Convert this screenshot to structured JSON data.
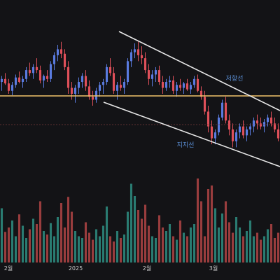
{
  "chart_data": {
    "type": "candlestick",
    "x_tick_labels": [
      "2월",
      "2025",
      "2월",
      "3월"
    ],
    "annotations": [
      "저항선",
      "지지선"
    ],
    "colors": {
      "background": "#131316",
      "up": "#5a7be0",
      "down": "#e0505a",
      "volume_up": "#2f8f82",
      "volume_down": "#b34545",
      "trendline": "#e8e8e8",
      "horizontal_level": "#f2c36b",
      "annotation": "#5b8fd6"
    },
    "price": {
      "ylim": [
        0,
        100
      ],
      "ohlc": [
        [
          58,
          62,
          52,
          60
        ],
        [
          60,
          64,
          56,
          57
        ],
        [
          57,
          60,
          50,
          52
        ],
        [
          52,
          58,
          49,
          56
        ],
        [
          56,
          63,
          54,
          61
        ],
        [
          61,
          65,
          57,
          58
        ],
        [
          58,
          62,
          54,
          60
        ],
        [
          60,
          68,
          58,
          66
        ],
        [
          66,
          71,
          62,
          64
        ],
        [
          64,
          70,
          60,
          68
        ],
        [
          68,
          74,
          64,
          66
        ],
        [
          66,
          69,
          57,
          59
        ],
        [
          59,
          63,
          54,
          62
        ],
        [
          62,
          66,
          58,
          60
        ],
        [
          60,
          72,
          58,
          70
        ],
        [
          70,
          78,
          66,
          76
        ],
        [
          76,
          83,
          72,
          80
        ],
        [
          80,
          85,
          74,
          77
        ],
        [
          77,
          80,
          66,
          68
        ],
        [
          68,
          72,
          50,
          54
        ],
        [
          54,
          58,
          46,
          50
        ],
        [
          50,
          56,
          44,
          54
        ],
        [
          54,
          61,
          50,
          58
        ],
        [
          58,
          64,
          54,
          62
        ],
        [
          62,
          66,
          52,
          55
        ],
        [
          55,
          59,
          46,
          48
        ],
        [
          48,
          52,
          42,
          46
        ],
        [
          46,
          54,
          44,
          52
        ],
        [
          52,
          58,
          48,
          56
        ],
        [
          56,
          60,
          50,
          58
        ],
        [
          58,
          70,
          56,
          68
        ],
        [
          68,
          74,
          62,
          64
        ],
        [
          64,
          68,
          50,
          52
        ],
        [
          52,
          58,
          46,
          56
        ],
        [
          56,
          62,
          52,
          54
        ],
        [
          54,
          60,
          50,
          58
        ],
        [
          58,
          74,
          56,
          72
        ],
        [
          72,
          80,
          68,
          78
        ],
        [
          78,
          84,
          74,
          80
        ],
        [
          80,
          85,
          72,
          76
        ],
        [
          76,
          82,
          70,
          74
        ],
        [
          74,
          78,
          64,
          66
        ],
        [
          66,
          70,
          56,
          60
        ],
        [
          60,
          66,
          55,
          63
        ],
        [
          63,
          68,
          58,
          66
        ],
        [
          66,
          69,
          56,
          58
        ],
        [
          58,
          62,
          50,
          54
        ],
        [
          54,
          60,
          52,
          58
        ],
        [
          58,
          62,
          54,
          59
        ],
        [
          59,
          62,
          50,
          52
        ],
        [
          52,
          58,
          48,
          56
        ],
        [
          56,
          60,
          52,
          54
        ],
        [
          54,
          58,
          50,
          57
        ],
        [
          57,
          60,
          52,
          53
        ],
        [
          53,
          58,
          50,
          56
        ],
        [
          56,
          62,
          54,
          60
        ],
        [
          60,
          63,
          51,
          52
        ],
        [
          52,
          55,
          46,
          48
        ],
        [
          48,
          52,
          36,
          38
        ],
        [
          38,
          42,
          24,
          28
        ],
        [
          28,
          32,
          16,
          20
        ],
        [
          20,
          26,
          16,
          24
        ],
        [
          24,
          36,
          22,
          34
        ],
        [
          34,
          46,
          32,
          44
        ],
        [
          44,
          48,
          30,
          32
        ],
        [
          32,
          36,
          22,
          26
        ],
        [
          26,
          30,
          14,
          18
        ],
        [
          18,
          26,
          14,
          24
        ],
        [
          24,
          30,
          20,
          28
        ],
        [
          28,
          32,
          20,
          22
        ],
        [
          22,
          28,
          18,
          26
        ],
        [
          26,
          30,
          22,
          28
        ],
        [
          28,
          34,
          24,
          32
        ],
        [
          32,
          36,
          26,
          30
        ],
        [
          30,
          34,
          26,
          28
        ],
        [
          28,
          33,
          24,
          31
        ],
        [
          31,
          36,
          28,
          34
        ],
        [
          34,
          38,
          28,
          30
        ],
        [
          30,
          34,
          24,
          26
        ],
        [
          26,
          30,
          18,
          20
        ]
      ]
    },
    "volume": [
      62,
      35,
      40,
      48,
      30,
      55,
      42,
      28,
      38,
      50,
      44,
      70,
      36,
      32,
      45,
      30,
      52,
      68,
      40,
      75,
      58,
      36,
      30,
      28,
      46,
      34,
      26,
      38,
      30,
      42,
      64,
      30,
      24,
      36,
      28,
      32,
      58,
      90,
      76,
      60,
      50,
      66,
      42,
      30,
      28,
      54,
      40,
      36,
      44,
      30,
      26,
      48,
      34,
      30,
      40,
      44,
      96,
      70,
      30,
      84,
      88,
      62,
      40,
      56,
      70,
      46,
      34,
      52,
      40,
      30,
      36,
      48,
      30,
      34,
      26,
      30,
      38,
      44,
      28,
      34
    ]
  }
}
